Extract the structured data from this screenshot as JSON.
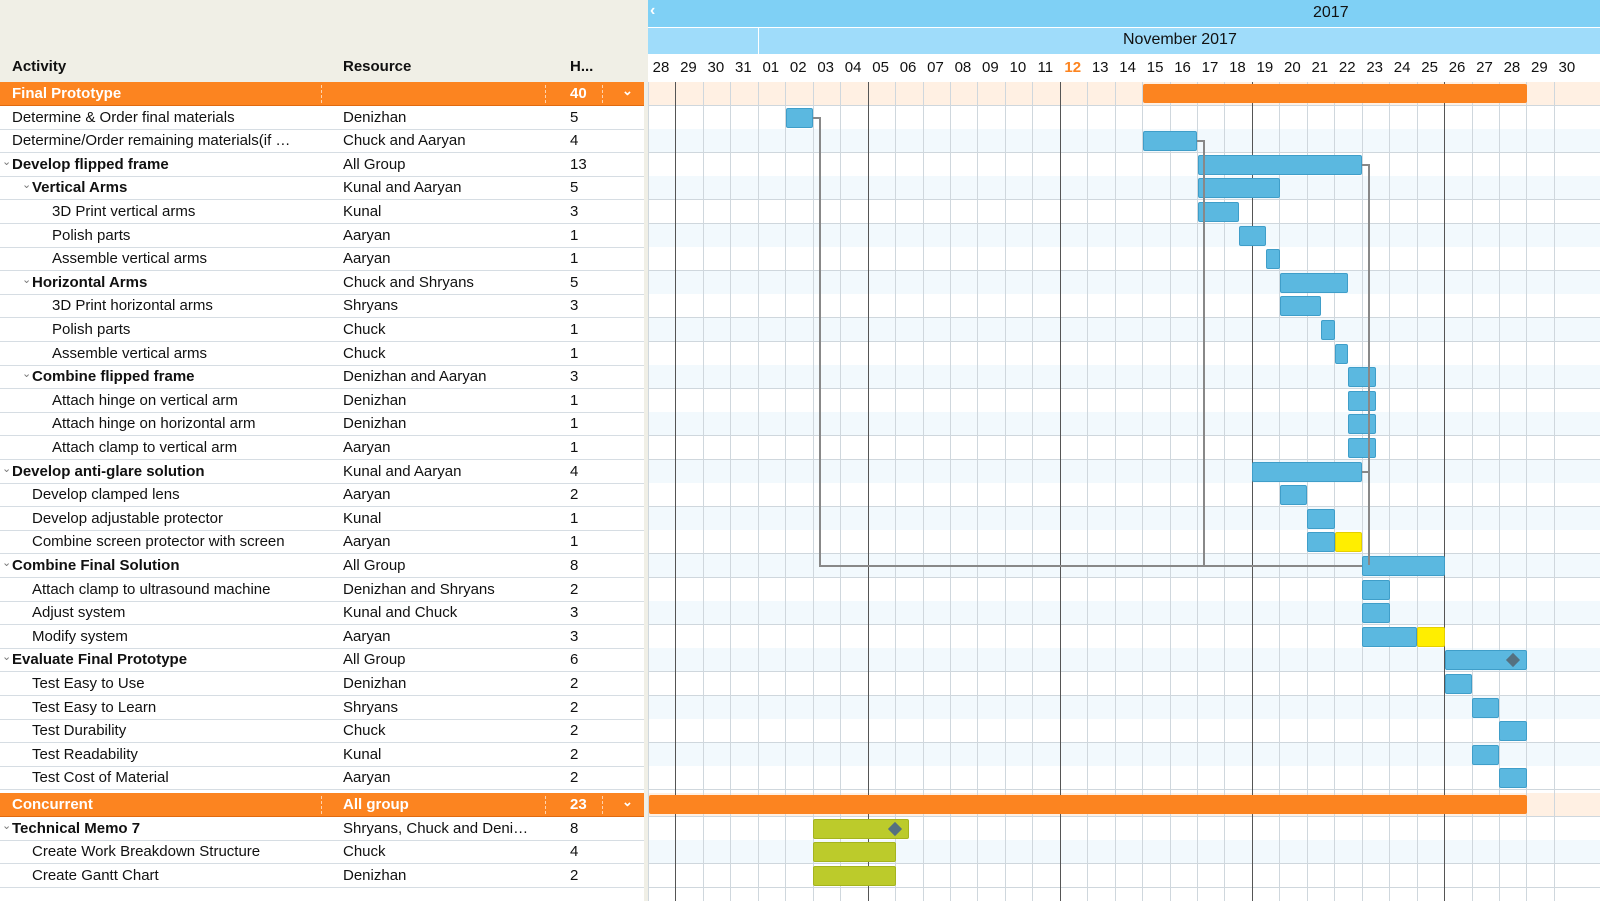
{
  "columns": {
    "activity": "Activity",
    "resource": "Resource",
    "hours": "H..."
  },
  "timeline": {
    "year": "2017",
    "month": "November 2017",
    "days": [
      "28",
      "29",
      "30",
      "31",
      "01",
      "02",
      "03",
      "04",
      "05",
      "06",
      "07",
      "08",
      "09",
      "10",
      "11",
      "12",
      "13",
      "14",
      "15",
      "16",
      "17",
      "18",
      "19",
      "20",
      "21",
      "22",
      "23",
      "24",
      "25",
      "26",
      "27",
      "28",
      "29",
      "30"
    ],
    "today_index": 15
  },
  "colors": {
    "summary": "#fc8420",
    "task": "#5bb8e0",
    "highlight": "#ffee00",
    "green": "#bccb2b",
    "header": "#7fd0f5"
  },
  "rows": [
    {
      "activity": "Final Prototype",
      "resource": "",
      "hours": "40",
      "type": "group"
    },
    {
      "activity": "Determine & Order final materials",
      "resource": "Denizhan",
      "hours": "5",
      "level": 0
    },
    {
      "activity": "Determine/Order remaining materials(if …",
      "resource": "Chuck and Aaryan",
      "hours": "4",
      "level": 0
    },
    {
      "activity": "Develop flipped frame",
      "resource": "All Group",
      "hours": "13",
      "level": 0,
      "bold": true
    },
    {
      "activity": "Vertical Arms",
      "resource": "Kunal and Aaryan",
      "hours": "5",
      "level": 1,
      "bold": true
    },
    {
      "activity": "3D Print vertical arms",
      "resource": "Kunal",
      "hours": "3",
      "level": 2
    },
    {
      "activity": "Polish parts",
      "resource": "Aaryan",
      "hours": "1",
      "level": 2
    },
    {
      "activity": "Assemble vertical arms",
      "resource": "Aaryan",
      "hours": "1",
      "level": 2
    },
    {
      "activity": "Horizontal Arms",
      "resource": "Chuck and Shryans",
      "hours": "5",
      "level": 1,
      "bold": true
    },
    {
      "activity": "3D Print horizontal arms",
      "resource": "Shryans",
      "hours": "3",
      "level": 2
    },
    {
      "activity": "Polish parts",
      "resource": "Chuck",
      "hours": "1",
      "level": 2
    },
    {
      "activity": "Assemble vertical arms",
      "resource": "Chuck",
      "hours": "1",
      "level": 2
    },
    {
      "activity": "Combine flipped frame",
      "resource": "Denizhan and Aaryan",
      "hours": "3",
      "level": 1,
      "bold": true
    },
    {
      "activity": "Attach hinge on vertical arm",
      "resource": "Denizhan",
      "hours": "1",
      "level": 2
    },
    {
      "activity": "Attach hinge on horizontal arm",
      "resource": "Denizhan",
      "hours": "1",
      "level": 2
    },
    {
      "activity": "Attach clamp to vertical arm",
      "resource": "Aaryan",
      "hours": "1",
      "level": 2
    },
    {
      "activity": "Develop anti-glare solution",
      "resource": "Kunal and Aaryan",
      "hours": "4",
      "level": 0,
      "bold": true
    },
    {
      "activity": "Develop clamped lens",
      "resource": "Aaryan",
      "hours": "2",
      "level": 1
    },
    {
      "activity": "Develop adjustable protector",
      "resource": "Kunal",
      "hours": "1",
      "level": 1
    },
    {
      "activity": "Combine screen protector with screen",
      "resource": "Aaryan",
      "hours": "1",
      "level": 1
    },
    {
      "activity": "Combine Final Solution",
      "resource": "All Group",
      "hours": "8",
      "level": 0,
      "bold": true
    },
    {
      "activity": "Attach clamp to ultrasound machine",
      "resource": "Denizhan and Shryans",
      "hours": "2",
      "level": 1
    },
    {
      "activity": "Adjust system",
      "resource": "Kunal and Chuck",
      "hours": "3",
      "level": 1
    },
    {
      "activity": "Modify system",
      "resource": "Aaryan",
      "hours": "3",
      "level": 1
    },
    {
      "activity": "Evaluate Final Prototype",
      "resource": "All Group",
      "hours": "6",
      "level": 0,
      "bold": true
    },
    {
      "activity": "Test Easy to Use",
      "resource": "Denizhan",
      "hours": "2",
      "level": 1
    },
    {
      "activity": "Test Easy to Learn",
      "resource": "Shryans",
      "hours": "2",
      "level": 1
    },
    {
      "activity": "Test Durability",
      "resource": "Chuck",
      "hours": "2",
      "level": 1
    },
    {
      "activity": "Test Readability",
      "resource": "Kunal",
      "hours": "2",
      "level": 1
    },
    {
      "activity": "Test Cost of Material",
      "resource": "Aaryan",
      "hours": "2",
      "level": 1
    },
    {
      "activity": "Concurrent",
      "resource": "All group",
      "hours": "23",
      "type": "group"
    },
    {
      "activity": "Technical Memo 7",
      "resource": "Shryans, Chuck and Deni…",
      "hours": "8",
      "level": 0,
      "bold": true
    },
    {
      "activity": "Create Work Breakdown Structure",
      "resource": "Chuck",
      "hours": "4",
      "level": 1
    },
    {
      "activity": "Create Gantt Chart",
      "resource": "Denizhan",
      "hours": "2",
      "level": 1
    }
  ],
  "bars": [
    {
      "row": 0,
      "start": 18,
      "end": 32,
      "kind": "sum"
    },
    {
      "row": 1,
      "start": 5,
      "end": 6,
      "kind": "task"
    },
    {
      "row": 2,
      "start": 18,
      "end": 20,
      "kind": "task"
    },
    {
      "row": 3,
      "start": 20,
      "end": 26,
      "kind": "task"
    },
    {
      "row": 4,
      "start": 20,
      "end": 23,
      "kind": "task"
    },
    {
      "row": 5,
      "start": 20,
      "end": 21.5,
      "kind": "task"
    },
    {
      "row": 6,
      "start": 21.5,
      "end": 22.5,
      "kind": "task"
    },
    {
      "row": 7,
      "start": 22.5,
      "end": 23,
      "kind": "task"
    },
    {
      "row": 8,
      "start": 23,
      "end": 25.5,
      "kind": "task"
    },
    {
      "row": 9,
      "start": 23,
      "end": 24.5,
      "kind": "task"
    },
    {
      "row": 10,
      "start": 24.5,
      "end": 25,
      "kind": "task"
    },
    {
      "row": 11,
      "start": 25,
      "end": 25.5,
      "kind": "task"
    },
    {
      "row": 12,
      "start": 25.5,
      "end": 26.5,
      "kind": "task"
    },
    {
      "row": 13,
      "start": 25.5,
      "end": 26.5,
      "kind": "task"
    },
    {
      "row": 14,
      "start": 25.5,
      "end": 26.5,
      "kind": "task"
    },
    {
      "row": 15,
      "start": 25.5,
      "end": 26.5,
      "kind": "task"
    },
    {
      "row": 16,
      "start": 22,
      "end": 26,
      "kind": "task"
    },
    {
      "row": 17,
      "start": 23,
      "end": 24,
      "kind": "task"
    },
    {
      "row": 18,
      "start": 24,
      "end": 25,
      "kind": "task"
    },
    {
      "row": 19,
      "start": 24,
      "end": 25,
      "kind": "task"
    },
    {
      "row": 19,
      "start": 25,
      "end": 26,
      "kind": "hl"
    },
    {
      "row": 20,
      "start": 26,
      "end": 29,
      "kind": "task"
    },
    {
      "row": 21,
      "start": 26,
      "end": 27,
      "kind": "task"
    },
    {
      "row": 22,
      "start": 26,
      "end": 27,
      "kind": "task"
    },
    {
      "row": 23,
      "start": 26,
      "end": 28,
      "kind": "task"
    },
    {
      "row": 23,
      "start": 28,
      "end": 29,
      "kind": "hl"
    },
    {
      "row": 24,
      "start": 29,
      "end": 32,
      "kind": "task"
    },
    {
      "row": 25,
      "start": 29,
      "end": 30,
      "kind": "task"
    },
    {
      "row": 26,
      "start": 30,
      "end": 31,
      "kind": "task"
    },
    {
      "row": 27,
      "start": 31,
      "end": 32,
      "kind": "task"
    },
    {
      "row": 28,
      "start": 30,
      "end": 31,
      "kind": "task"
    },
    {
      "row": 29,
      "start": 31,
      "end": 32,
      "kind": "task"
    },
    {
      "row": 30,
      "start": 0,
      "end": 32,
      "kind": "sum"
    },
    {
      "row": 31,
      "start": 6,
      "end": 9.5,
      "kind": "green"
    },
    {
      "row": 32,
      "start": 6,
      "end": 9,
      "kind": "green"
    },
    {
      "row": 33,
      "start": 6,
      "end": 9,
      "kind": "green"
    }
  ],
  "milestones": [
    {
      "row": 24,
      "day": 31.5
    },
    {
      "row": 31,
      "day": 9
    }
  ]
}
